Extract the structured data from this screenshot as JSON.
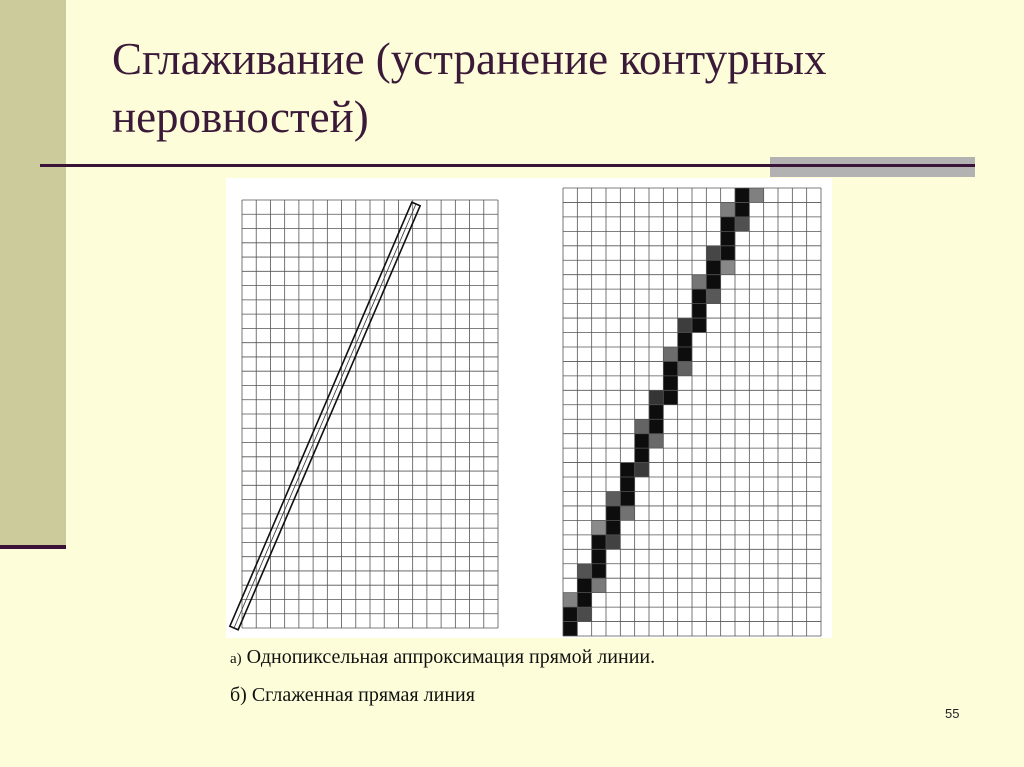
{
  "slide": {
    "title": "Сглаживание (устранение контурных неровностей)",
    "caption_a_marker": "а)",
    "caption_a": "Однопиксельная аппроксимация прямой линии.",
    "caption_b": "б) Сглаженная прямая линия",
    "page_number": "55"
  },
  "colors": {
    "background": "#fdfdda",
    "sidebar": "#cccb9b",
    "accent_line": "#3b1238",
    "title": "#3a1a38"
  }
}
